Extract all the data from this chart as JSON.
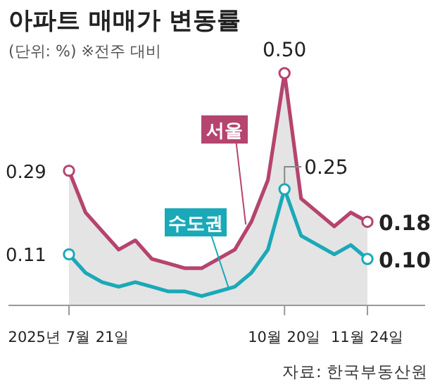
{
  "chart_data": {
    "type": "line",
    "title": "아파트 매매가 변동률",
    "subtitle": "(단위: %) ※전주 대비",
    "categories": [
      "2025년 7월 21일",
      null,
      null,
      null,
      null,
      null,
      null,
      null,
      null,
      null,
      null,
      null,
      null,
      "10월 20일",
      null,
      null,
      null,
      null,
      "11월 24일"
    ],
    "series": [
      {
        "name": "서울",
        "type": "area",
        "color": "#b5446e",
        "values": [
          0.29,
          0.2,
          0.16,
          0.12,
          0.14,
          0.1,
          0.09,
          0.08,
          0.08,
          0.1,
          0.12,
          0.18,
          0.27,
          0.5,
          0.23,
          0.2,
          0.17,
          0.2,
          0.18
        ],
        "value_labels": [
          "0.29",
          null,
          null,
          null,
          null,
          null,
          null,
          null,
          null,
          null,
          null,
          null,
          null,
          "0.50",
          null,
          null,
          null,
          null,
          "0.18"
        ]
      },
      {
        "name": "수도권",
        "type": "line",
        "color": "#1aa9b8",
        "values": [
          0.11,
          0.07,
          0.05,
          0.04,
          0.05,
          0.04,
          0.03,
          0.03,
          0.02,
          0.03,
          0.04,
          0.07,
          0.12,
          0.25,
          0.15,
          0.13,
          0.11,
          0.13,
          0.1
        ],
        "value_labels": [
          "0.11",
          null,
          null,
          null,
          null,
          null,
          null,
          null,
          null,
          null,
          null,
          null,
          null,
          "0.25",
          null,
          null,
          null,
          null,
          "0.10"
        ]
      }
    ],
    "annotations": [
      "자료: 한국부동산원"
    ]
  }
}
